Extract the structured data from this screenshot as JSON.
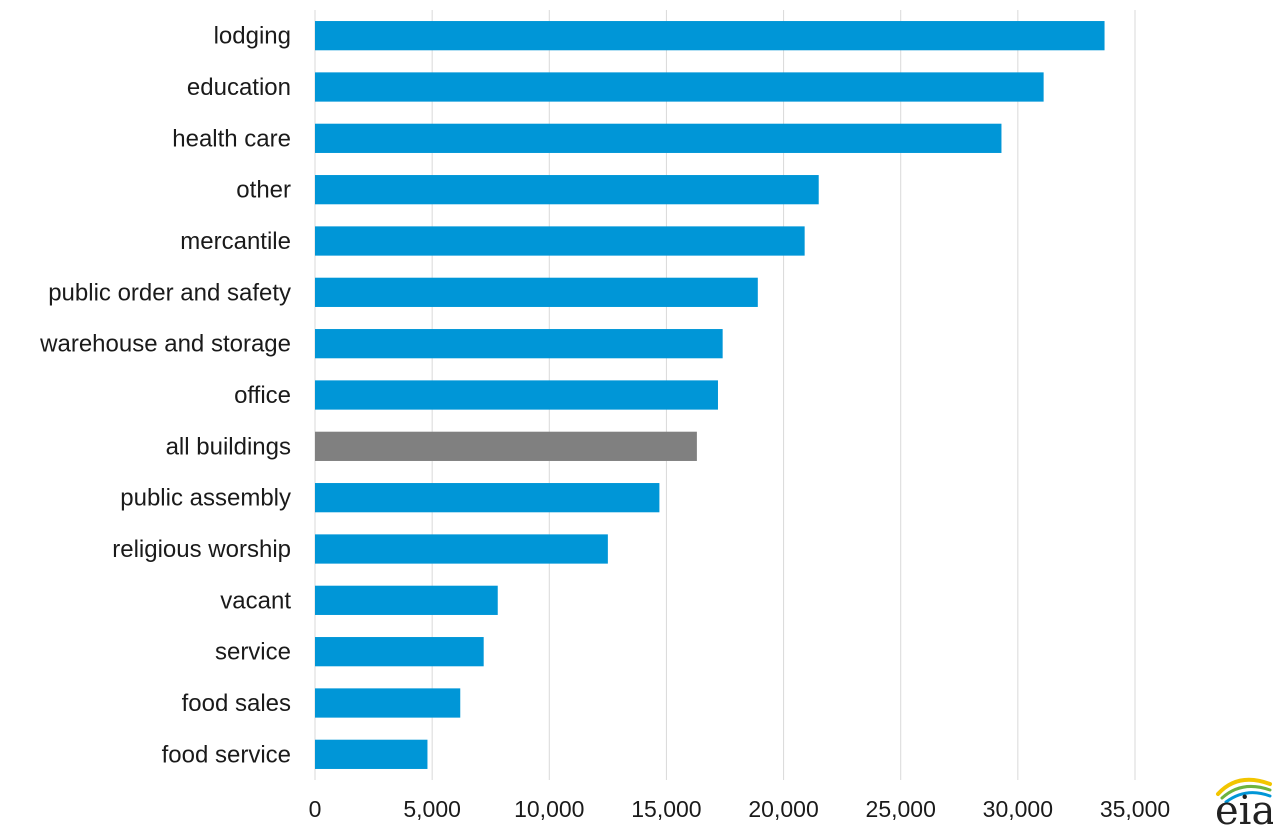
{
  "chart_data": {
    "type": "bar",
    "orientation": "horizontal",
    "categories": [
      "lodging",
      "education",
      "health care",
      "other",
      "mercantile",
      "public order and safety",
      "warehouse and storage",
      "office",
      "all buildings",
      "public assembly",
      "religious worship",
      "vacant",
      "service",
      "food sales",
      "food service"
    ],
    "values": [
      33700,
      31100,
      29300,
      21500,
      20900,
      18900,
      17400,
      17200,
      16300,
      14700,
      12500,
      7800,
      7200,
      6200,
      4800
    ],
    "highlight_category": "all buildings",
    "xlim": [
      0,
      35000
    ],
    "xticks": [
      0,
      5000,
      10000,
      15000,
      20000,
      25000,
      30000,
      35000
    ],
    "xtick_labels": [
      "0",
      "5,000",
      "10,000",
      "15,000",
      "20,000",
      "25,000",
      "30,000",
      "35,000"
    ],
    "title": "",
    "xlabel": "",
    "ylabel": "",
    "grid": "vertical",
    "legend": "none",
    "colors": {
      "bar": "#0096d7",
      "highlight": "#808080",
      "grid": "#d9d9d9"
    }
  },
  "logo": {
    "text": "eia",
    "icon": "eia-logo-icon"
  }
}
